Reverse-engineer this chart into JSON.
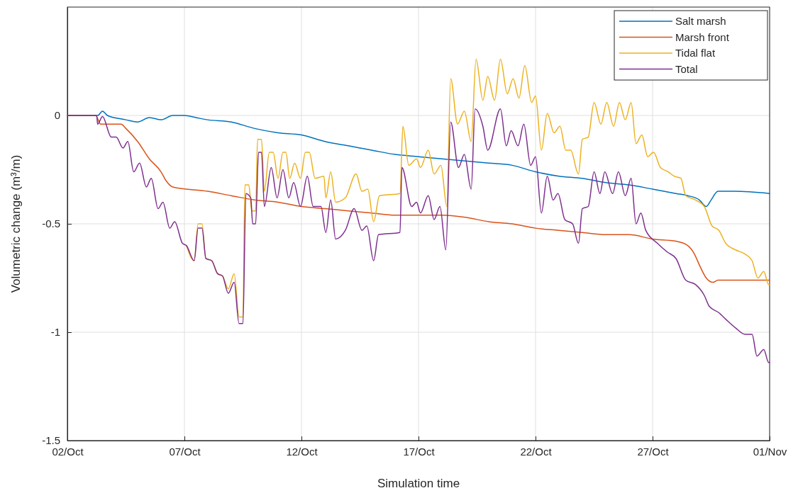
{
  "chart_data": {
    "type": "line",
    "xlabel": "Simulation time",
    "ylabel": "Volumetric change (m³/m)",
    "xlim": [
      "--10-02",
      "--11-01"
    ],
    "xticks": [
      {
        "value": "--10-02",
        "label": "02/Oct"
      },
      {
        "value": "--10-07",
        "label": "07/Oct"
      },
      {
        "value": "--10-12",
        "label": "12/Oct"
      },
      {
        "value": "--10-17",
        "label": "17/Oct"
      },
      {
        "value": "--10-22",
        "label": "22/Oct"
      },
      {
        "value": "--10-27",
        "label": "27/Oct"
      },
      {
        "value": "--11-01",
        "label": "01/Nov"
      }
    ],
    "ylim": [
      -1.5,
      0.5
    ],
    "yticks": [
      -1.5,
      -1,
      -0.5,
      0
    ],
    "grid": true,
    "legend": "top right",
    "marker": "none",
    "line_style": "solid",
    "series": [
      {
        "name": "Salt marsh",
        "color": "#0072bd",
        "x": [
          "--10-02T00:00",
          "--10-03T07:00",
          "--10-03T12:00",
          "--10-03T17:00",
          "--10-04T12:00",
          "--10-05T00:00",
          "--10-05T12:00",
          "--10-06T00:00",
          "--10-06T12:00",
          "--10-07T00:00",
          "--10-07T12:00",
          "--10-08T00:00",
          "--10-09T00:00",
          "--10-10T00:00",
          "--10-11T00:00",
          "--10-12T00:00",
          "--10-13T00:00",
          "--10-14T00:00",
          "--10-15T00:00",
          "--10-16T00:00",
          "--10-17T00:00",
          "--10-18T00:00",
          "--10-19T00:00",
          "--10-20T00:00",
          "--10-21T00:00",
          "--10-22T00:00",
          "--10-23T00:00",
          "--10-24T00:00",
          "--10-25T00:00",
          "--10-26T00:00",
          "--10-27T00:00",
          "--10-28T00:00",
          "--10-28T12:00",
          "--10-29T00:00",
          "--10-29T07:00",
          "--10-29T12:00",
          "--10-29T19:00",
          "--10-30T12:00",
          "--11-01T00:00"
        ],
        "values": [
          0,
          0,
          0.02,
          0,
          -0.02,
          -0.03,
          -0.01,
          -0.02,
          0,
          0,
          -0.01,
          -0.02,
          -0.03,
          -0.06,
          -0.08,
          -0.09,
          -0.12,
          -0.14,
          -0.16,
          -0.18,
          -0.19,
          -0.2,
          -0.21,
          -0.22,
          -0.23,
          -0.26,
          -0.28,
          -0.29,
          -0.31,
          -0.32,
          -0.34,
          -0.36,
          -0.37,
          -0.39,
          -0.42,
          -0.39,
          -0.35,
          -0.35,
          -0.36
        ]
      },
      {
        "name": "Marsh front",
        "color": "#d95319",
        "x": [
          "--10-02T00:00",
          "--10-03T05:00",
          "--10-03T10:00",
          "--10-04T07:00",
          "--10-04T12:00",
          "--10-05T00:00",
          "--10-05T12:00",
          "--10-06T00:00",
          "--10-06T05:00",
          "--10-06T12:00",
          "--10-08T00:00",
          "--10-09T00:00",
          "--10-10T00:00",
          "--10-11T00:00",
          "--10-12T00:00",
          "--10-13T00:00",
          "--10-14T00:00",
          "--10-15T00:00",
          "--10-16T00:00",
          "--10-17T00:00",
          "--10-18T00:00",
          "--10-19T00:00",
          "--10-20T00:00",
          "--10-21T00:00",
          "--10-22T00:00",
          "--10-23T00:00",
          "--10-24T00:00",
          "--10-25T00:00",
          "--10-26T00:00",
          "--10-27T00:00",
          "--10-28T00:00",
          "--10-28T12:00",
          "--10-28T19:00",
          "--10-29T00:00",
          "--10-29T07:00",
          "--10-29T14:00",
          "--10-29T19:00",
          "--10-30T12:00",
          "--11-01T00:00"
        ],
        "values": [
          0,
          0,
          -0.04,
          -0.04,
          -0.06,
          -0.12,
          -0.2,
          -0.26,
          -0.3,
          -0.33,
          -0.35,
          -0.37,
          -0.39,
          -0.4,
          -0.42,
          -0.43,
          -0.44,
          -0.45,
          -0.46,
          -0.46,
          -0.46,
          -0.47,
          -0.49,
          -0.5,
          -0.52,
          -0.53,
          -0.54,
          -0.55,
          -0.55,
          -0.57,
          -0.58,
          -0.6,
          -0.64,
          -0.69,
          -0.75,
          -0.77,
          -0.76,
          -0.76,
          -0.76
        ]
      },
      {
        "name": "Tidal flat",
        "color": "#edb120",
        "x": [
          "--10-07T02:00",
          "--10-07T10:00",
          "--10-07T14:00",
          "--10-07T18:00",
          "--10-07T22:00",
          "--10-08T04:00",
          "--10-08T10:00",
          "--10-08T15:00",
          "--10-08T21:00",
          "--10-09T03:00",
          "--10-09T08:00",
          "--10-09T12:00",
          "--10-09T14:00",
          "--10-09T18:00",
          "--10-09T21:00",
          "--10-10T01:00",
          "--10-10T03:00",
          "--10-10T07:00",
          "--10-10T10:00",
          "--10-10T15:00",
          "--10-10T19:00",
          "--10-11T00:00",
          "--10-11T05:00",
          "--10-11T08:00",
          "--10-11T12:00",
          "--10-11T17:00",
          "--10-11T23:00",
          "--10-12T04:00",
          "--10-12T08:00",
          "--10-12T14:00",
          "--10-12T23:00",
          "--10-13T01:00",
          "--10-13T06:00",
          "--10-13T11:00",
          "--10-13T21:00",
          "--10-14T08:00",
          "--10-14T14:00",
          "--10-14T20:00",
          "--10-15T02:00",
          "--10-15T08:00",
          "--10-16T05:00",
          "--10-16T08:00",
          "--10-16T14:00",
          "--10-16T22:00",
          "--10-17T02:00",
          "--10-17T10:00",
          "--10-17T16:00",
          "--10-17T23:00",
          "--10-18T05:00",
          "--10-18T09:00",
          "--10-18T16:00",
          "--10-18T23:00",
          "--10-19T06:00",
          "--10-19T11:00",
          "--10-19T18:00",
          "--10-19T23:00",
          "--10-20T06:00",
          "--10-20T12:00",
          "--10-20T19:00",
          "--10-21T01:00",
          "--10-21T07:00",
          "--10-21T13:00",
          "--10-21T20:00",
          "--10-22T00:00",
          "--10-22T06:00",
          "--10-22T12:00",
          "--10-22T19:00",
          "--10-23T01:00",
          "--10-23T07:00",
          "--10-23T12:00",
          "--10-23T20:00",
          "--10-24T00:00",
          "--10-24T06:00",
          "--10-24T12:00",
          "--10-24T19:00",
          "--10-25T01:00",
          "--10-25T08:00",
          "--10-25T14:00",
          "--10-25T20:00",
          "--10-26T02:00",
          "--10-26T07:00",
          "--10-26T13:00",
          "--10-26T19:00",
          "--10-27T01:00",
          "--10-27T08:00",
          "--10-27T16:00",
          "--10-27T22:00",
          "--10-28T05:00",
          "--10-28T10:00",
          "--10-28T20:00",
          "--10-29T05:00",
          "--10-29T13:00",
          "--10-29T20:00",
          "--10-30T03:00",
          "--10-30T13:00",
          "--10-30T23:00",
          "--10-31T06:00",
          "--10-31T12:00",
          "--10-31T18:00",
          "--10-31T23:00",
          "--11-01T00:00"
        ],
        "values": [
          -0.6,
          -0.67,
          -0.5,
          -0.5,
          -0.66,
          -0.67,
          -0.73,
          -0.74,
          -0.8,
          -0.73,
          -0.93,
          -0.93,
          -0.32,
          -0.32,
          -0.44,
          -0.44,
          -0.11,
          -0.11,
          -0.35,
          -0.17,
          -0.17,
          -0.29,
          -0.17,
          -0.17,
          -0.29,
          -0.22,
          -0.29,
          -0.17,
          -0.17,
          -0.29,
          -0.28,
          -0.38,
          -0.26,
          -0.4,
          -0.38,
          -0.27,
          -0.35,
          -0.34,
          -0.49,
          -0.37,
          -0.36,
          -0.05,
          -0.23,
          -0.2,
          -0.24,
          -0.16,
          -0.27,
          -0.23,
          -0.42,
          0.17,
          -0.04,
          0.02,
          -0.12,
          0.26,
          0.07,
          0.18,
          0.07,
          0.26,
          0.1,
          0.17,
          0.08,
          0.23,
          0.06,
          0.09,
          -0.16,
          0.01,
          -0.08,
          -0.05,
          -0.16,
          -0.16,
          -0.27,
          -0.11,
          -0.1,
          0.06,
          -0.04,
          0.06,
          -0.05,
          0.06,
          -0.02,
          0.06,
          -0.13,
          -0.09,
          -0.19,
          -0.17,
          -0.24,
          -0.26,
          -0.28,
          -0.29,
          -0.37,
          -0.39,
          -0.42,
          -0.51,
          -0.53,
          -0.59,
          -0.62,
          -0.64,
          -0.67,
          -0.75,
          -0.72,
          -0.78,
          -0.78
        ]
      },
      {
        "name": "Total",
        "color": "#7e2f8e",
        "x": [
          "--10-02T00:00",
          "--10-03T06:00",
          "--10-03T07:00",
          "--10-03T12:00",
          "--10-03T21:00",
          "--10-04T02:00",
          "--10-04T09:00",
          "--10-04T14:00",
          "--10-04T20:00",
          "--10-05T02:00",
          "--10-05T09:00",
          "--10-05T14:00",
          "--10-05T21:00",
          "--10-06T02:00",
          "--10-06T09:00",
          "--10-06T14:00",
          "--10-06T22:00",
          "--10-07T02:00",
          "--10-07T10:00",
          "--10-07T14:00",
          "--10-07T18:00",
          "--10-07T22:00",
          "--10-08T04:00",
          "--10-08T10:00",
          "--10-08T15:00",
          "--10-08T21:00",
          "--10-09T03:00",
          "--10-09T08:00",
          "--10-09T12:00",
          "--10-09T15:00",
          "--10-09T20:00",
          "--10-09T22:00",
          "--10-10T01:00",
          "--10-10T04:00",
          "--10-10T07:00",
          "--10-10T10:00",
          "--10-10T17:00",
          "--10-10T23:00",
          "--10-11T05:00",
          "--10-11T11:00",
          "--10-11T16:00",
          "--10-11T23:00",
          "--10-12T06:00",
          "--10-12T12:00",
          "--10-12T20:00",
          "--10-13T01:00",
          "--10-13T06:00",
          "--10-13T11:00",
          "--10-13T21:00",
          "--10-14T06:00",
          "--10-14T14:00",
          "--10-14T19:00",
          "--10-15T02:00",
          "--10-15T07:00",
          "--10-16T05:00",
          "--10-16T07:00",
          "--10-16T17:00",
          "--10-16T22:00",
          "--10-17T02:00",
          "--10-17T10:00",
          "--10-17T16:00",
          "--10-17T22:00",
          "--10-18T04:00",
          "--10-18T09:00",
          "--10-18T17:00",
          "--10-18T23:00",
          "--10-19T06:00",
          "--10-19T10:00",
          "--10-19T18:00",
          "--10-19T23:00",
          "--10-20T12:00",
          "--10-20T18:00",
          "--10-20T23:00",
          "--10-21T06:00",
          "--10-21T12:00",
          "--10-21T19:00",
          "--10-22T00:00",
          "--10-22T06:00",
          "--10-22T12:00",
          "--10-22T18:00",
          "--10-22T23:00",
          "--10-23T06:00",
          "--10-23T14:00",
          "--10-23T20:00",
          "--10-24T00:00",
          "--10-24T06:00",
          "--10-24T12:00",
          "--10-24T18:00",
          "--10-24T23:00",
          "--10-25T07:00",
          "--10-25T13:00",
          "--10-25T20:00",
          "--10-26T02:00",
          "--10-26T07:00",
          "--10-26T12:00",
          "--10-26T17:00",
          "--10-27T05:00",
          "--10-27T15:00",
          "--10-28T00:00",
          "--10-28T10:00",
          "--10-28T20:00",
          "--10-29T05:00",
          "--10-29T10:00",
          "--10-29T20:00",
          "--10-30T03:00",
          "--10-30T13:00",
          "--10-30T23:00",
          "--10-31T06:00",
          "--10-31T11:00",
          "--10-31T18:00",
          "--10-31T23:00",
          "--11-01T00:00"
        ],
        "values": [
          0,
          0,
          -0.04,
          -0.005,
          -0.1,
          -0.1,
          -0.15,
          -0.12,
          -0.26,
          -0.22,
          -0.33,
          -0.29,
          -0.43,
          -0.4,
          -0.52,
          -0.49,
          -0.59,
          -0.6,
          -0.67,
          -0.52,
          -0.52,
          -0.66,
          -0.67,
          -0.73,
          -0.74,
          -0.82,
          -0.77,
          -0.96,
          -0.96,
          -0.36,
          -0.38,
          -0.5,
          -0.5,
          -0.17,
          -0.17,
          -0.42,
          -0.24,
          -0.38,
          -0.25,
          -0.38,
          -0.31,
          -0.42,
          -0.28,
          -0.42,
          -0.42,
          -0.54,
          -0.39,
          -0.57,
          -0.53,
          -0.43,
          -0.53,
          -0.51,
          -0.67,
          -0.55,
          -0.54,
          -0.24,
          -0.42,
          -0.4,
          -0.45,
          -0.37,
          -0.48,
          -0.42,
          -0.62,
          -0.03,
          -0.24,
          -0.18,
          -0.34,
          0.03,
          -0.05,
          -0.16,
          0.03,
          -0.14,
          -0.07,
          -0.14,
          -0.04,
          -0.23,
          -0.19,
          -0.45,
          -0.28,
          -0.39,
          -0.36,
          -0.48,
          -0.5,
          -0.59,
          -0.43,
          -0.42,
          -0.26,
          -0.36,
          -0.26,
          -0.36,
          -0.26,
          -0.37,
          -0.29,
          -0.5,
          -0.45,
          -0.53,
          -0.59,
          -0.63,
          -0.66,
          -0.76,
          -0.78,
          -0.83,
          -0.88,
          -0.91,
          -0.94,
          -0.98,
          -1.01,
          -1.01,
          -1.11,
          -1.08,
          -1.14,
          -1.14
        ]
      }
    ]
  }
}
